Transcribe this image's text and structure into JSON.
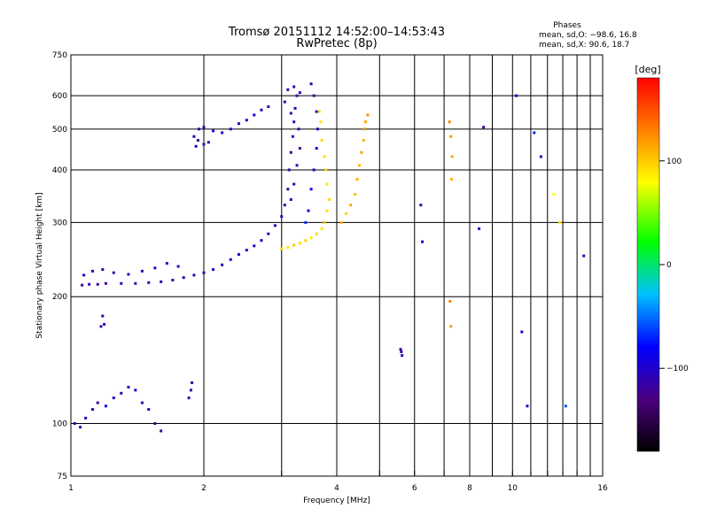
{
  "chart_data": {
    "type": "scatter",
    "title": "Tromsø 20151112 14:52:00–14:53:43",
    "subtitle": "RwPretec (8p)",
    "xlabel": "Frequency [MHz]",
    "ylabel": "Stationary phase Virtual Height [km]",
    "x_scale": "log",
    "y_scale": "log",
    "xlim": [
      1,
      16
    ],
    "ylim": [
      75,
      750
    ],
    "x_ticks": [
      1,
      2,
      4,
      6,
      8,
      10,
      16
    ],
    "x_tick_labels": [
      "1",
      "2",
      "4",
      "6",
      "8",
      "10",
      "16"
    ],
    "y_ticks": [
      75,
      100,
      200,
      300,
      400,
      500,
      600,
      750
    ],
    "y_tick_labels": [
      "75",
      "100",
      "200",
      "300",
      "400",
      "500",
      "600",
      "750"
    ],
    "grid": true,
    "phases_header": "Phases",
    "phases_stats": [
      "mean, sd,O: −98.6, 16.8",
      "mean, sd,X:  90.6, 18.7"
    ],
    "colorbar": {
      "label": "[deg]",
      "range": [
        -180,
        180
      ],
      "ticks": [
        100,
        0,
        -100
      ],
      "tick_labels": [
        "100",
        "0",
        "−100"
      ]
    },
    "series": [
      {
        "comment_values": "O-mode trace: [freq MHz, height km, phase deg]",
        "values": [
          [
            1.06,
            213,
            -120
          ],
          [
            1.1,
            214,
            -110
          ],
          [
            1.15,
            214,
            -115
          ],
          [
            1.2,
            215,
            -120
          ],
          [
            1.3,
            215,
            -110
          ],
          [
            1.4,
            215,
            -120
          ],
          [
            1.5,
            216,
            -115
          ],
          [
            1.6,
            217,
            -110
          ],
          [
            1.7,
            219,
            -118
          ],
          [
            1.8,
            222,
            -112
          ],
          [
            1.9,
            225,
            -115
          ],
          [
            2.0,
            228,
            -110
          ],
          [
            2.1,
            232,
            -105
          ],
          [
            2.2,
            238,
            -112
          ],
          [
            2.3,
            245,
            -100
          ],
          [
            2.4,
            252,
            -110
          ],
          [
            2.5,
            258,
            -95
          ],
          [
            2.6,
            264,
            -105
          ],
          [
            2.7,
            272,
            -100
          ],
          [
            2.8,
            282,
            -110
          ],
          [
            2.9,
            295,
            -100
          ],
          [
            3.0,
            310,
            -108
          ],
          [
            3.05,
            330,
            -112
          ],
          [
            3.1,
            360,
            -118
          ],
          [
            3.12,
            400,
            -115
          ],
          [
            3.15,
            440,
            -120
          ],
          [
            3.18,
            480,
            -112
          ],
          [
            3.2,
            520,
            -118
          ],
          [
            3.22,
            560,
            -110
          ],
          [
            3.25,
            600,
            -120
          ],
          [
            3.1,
            620,
            -112
          ],
          [
            3.2,
            630,
            -118
          ],
          [
            3.3,
            610,
            -110
          ],
          [
            3.05,
            580,
            -115
          ],
          [
            3.15,
            545,
            -120
          ],
          [
            3.28,
            500,
            -112
          ],
          [
            3.3,
            450,
            -118
          ],
          [
            3.25,
            410,
            -110
          ],
          [
            3.2,
            370,
            -116
          ],
          [
            3.15,
            340,
            -108
          ],
          [
            3.5,
            640,
            -112
          ],
          [
            3.55,
            600,
            -118
          ],
          [
            3.6,
            550,
            -105
          ],
          [
            3.62,
            500,
            -110
          ],
          [
            3.6,
            450,
            -95
          ],
          [
            3.55,
            400,
            -100
          ],
          [
            3.5,
            360,
            -90
          ],
          [
            3.45,
            320,
            -80
          ],
          [
            3.4,
            300,
            -70
          ],
          [
            1.07,
            225,
            -100
          ],
          [
            1.12,
            230,
            -110
          ],
          [
            1.18,
            232,
            -105
          ],
          [
            1.25,
            228,
            -115
          ],
          [
            1.35,
            226,
            -108
          ],
          [
            1.45,
            230,
            -112
          ],
          [
            1.55,
            234,
            -100
          ],
          [
            1.65,
            240,
            -110
          ],
          [
            1.75,
            236,
            -105
          ],
          [
            1.9,
            480,
            -110
          ],
          [
            1.95,
            500,
            -115
          ],
          [
            2.0,
            505,
            -110
          ],
          [
            2.1,
            495,
            -105
          ],
          [
            2.2,
            490,
            -112
          ],
          [
            2.3,
            500,
            -100
          ],
          [
            2.4,
            515,
            -108
          ],
          [
            2.5,
            525,
            -95
          ],
          [
            2.6,
            540,
            -100
          ],
          [
            2.7,
            555,
            -105
          ],
          [
            2.8,
            565,
            -110
          ],
          [
            1.92,
            455,
            -112
          ],
          [
            2.0,
            460,
            -118
          ],
          [
            1.94,
            470,
            -110
          ],
          [
            2.05,
            465,
            -115
          ]
        ]
      },
      {
        "comment_values": "X-mode trace: [freq MHz, height km, phase deg]",
        "values": [
          [
            3.0,
            260,
            95
          ],
          [
            3.1,
            262,
            90
          ],
          [
            3.2,
            265,
            100
          ],
          [
            3.3,
            268,
            92
          ],
          [
            3.4,
            272,
            98
          ],
          [
            3.5,
            276,
            88
          ],
          [
            3.6,
            282,
            95
          ],
          [
            3.7,
            290,
            90
          ],
          [
            3.75,
            300,
            100
          ],
          [
            3.8,
            320,
            92
          ],
          [
            3.85,
            340,
            96
          ],
          [
            3.8,
            370,
            90
          ],
          [
            3.78,
            400,
            98
          ],
          [
            3.75,
            430,
            92
          ],
          [
            3.7,
            470,
            95
          ],
          [
            3.68,
            520,
            90
          ],
          [
            3.65,
            550,
            98
          ],
          [
            4.1,
            300,
            110
          ],
          [
            4.2,
            315,
            100
          ],
          [
            4.3,
            330,
            115
          ],
          [
            4.4,
            350,
            105
          ],
          [
            4.45,
            380,
            112
          ],
          [
            4.5,
            410,
            108
          ],
          [
            4.55,
            440,
            118
          ],
          [
            4.6,
            470,
            110
          ],
          [
            4.62,
            500,
            120
          ],
          [
            4.65,
            520,
            115
          ],
          [
            4.7,
            540,
            125
          ]
        ]
      },
      {
        "comment_values": "Low-height echoes and scattered points",
        "values": [
          [
            1.02,
            100,
            -110
          ],
          [
            1.05,
            98,
            -115
          ],
          [
            1.08,
            103,
            -105
          ],
          [
            1.12,
            108,
            -112
          ],
          [
            1.15,
            112,
            -118
          ],
          [
            1.2,
            110,
            -90
          ],
          [
            1.25,
            115,
            -108
          ],
          [
            1.3,
            118,
            -112
          ],
          [
            1.35,
            122,
            -115
          ],
          [
            1.4,
            120,
            -100
          ],
          [
            1.45,
            112,
            -110
          ],
          [
            1.5,
            108,
            -105
          ],
          [
            1.55,
            100,
            -120
          ],
          [
            1.6,
            96,
            -115
          ],
          [
            1.17,
            170,
            -120
          ],
          [
            1.18,
            180,
            -115
          ],
          [
            1.19,
            172,
            -110
          ],
          [
            1.85,
            115,
            -115
          ],
          [
            1.87,
            120,
            -110
          ],
          [
            1.88,
            125,
            -118
          ],
          [
            5.6,
            148,
            -120
          ],
          [
            5.62,
            145,
            -110
          ],
          [
            5.58,
            150,
            -115
          ],
          [
            6.2,
            330,
            -120
          ],
          [
            6.25,
            270,
            -90
          ],
          [
            7.2,
            520,
            130
          ],
          [
            7.25,
            480,
            120
          ],
          [
            7.3,
            430,
            115
          ],
          [
            7.28,
            380,
            110
          ],
          [
            7.22,
            195,
            130
          ],
          [
            7.25,
            170,
            120
          ],
          [
            8.4,
            290,
            -110
          ],
          [
            8.6,
            505,
            -120
          ],
          [
            10.2,
            600,
            -90
          ],
          [
            10.5,
            165,
            -100
          ],
          [
            10.8,
            110,
            -100
          ],
          [
            11.2,
            490,
            -70
          ],
          [
            11.6,
            430,
            -110
          ],
          [
            12.4,
            350,
            80
          ],
          [
            12.8,
            300,
            90
          ],
          [
            13.2,
            110,
            -60
          ],
          [
            14.5,
            250,
            -110
          ]
        ]
      }
    ]
  }
}
